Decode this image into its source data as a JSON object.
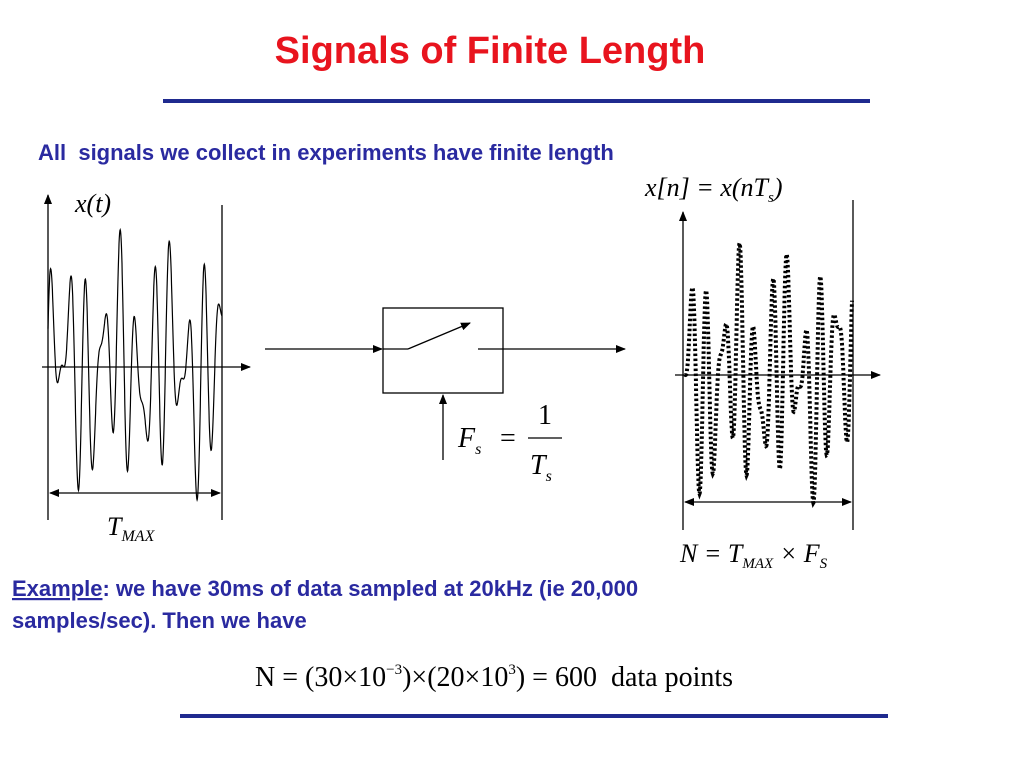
{
  "header": {
    "title": "Signals of Finite Length"
  },
  "intro": "All  signals we collect in experiments have finite length",
  "analog_plot": {
    "label": "x(t)",
    "width_label": {
      "base": "T",
      "sub": "MAX"
    }
  },
  "sampler": {
    "lhs": "F",
    "lhs_sub": "s",
    "eq": "=",
    "numerator": "1",
    "denominator": "T",
    "denominator_sub": "s"
  },
  "sampled_plot": {
    "label": {
      "before": "x[n] = x(nT",
      "sub": "s",
      "after": ")"
    },
    "count_label": {
      "start": "N = T",
      "sub1": "MAX",
      "mid": " × F",
      "sub2": "S"
    }
  },
  "example": {
    "keyword": "Example",
    "line1": ": we have 30ms of data sampled at 20kHz (ie 20,000",
    "line2": "samples/sec). Then we have"
  },
  "equation": {
    "part1": "N = (30×10",
    "sup1": "−3",
    "part2": ")×(20×10",
    "sup2": "3",
    "part3": ") = 600  data points"
  }
}
